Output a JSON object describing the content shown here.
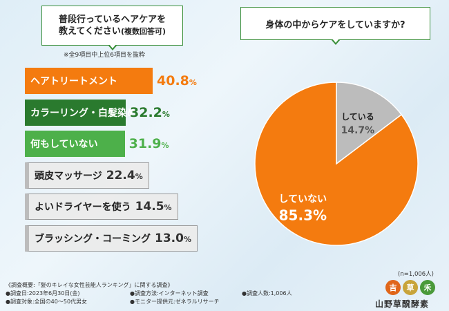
{
  "question1": {
    "line1": "普段行っているヘアケアを",
    "line2": "教えてください",
    "line2b": "(複数回答可)"
  },
  "note": "※全9項目中上位6項目を抜粋",
  "question2": "身体の中からケアをしていますか?",
  "colors": {
    "orange": "#f47b0f",
    "dark_green": "#2a7a2e",
    "light_green": "#4db04a",
    "gray": "#bcbcbc"
  },
  "chart_data": [
    {
      "type": "bar",
      "orientation": "horizontal",
      "title": "普段行っているヘアケアを教えてください(複数回答可)",
      "unit": "%",
      "categories": [
        "ヘアトリートメント",
        "カラーリング・白髪染め",
        "何もしていない",
        "頭皮マッサージ",
        "よいドライヤーを使う",
        "ブラッシング・コーミング"
      ],
      "values": [
        40.8,
        32.2,
        31.9,
        22.4,
        14.5,
        13.0
      ],
      "labels": [
        "40.8%",
        "32.2%",
        "31.9%",
        "22.4%",
        "14.5%",
        "13.0%"
      ]
    },
    {
      "type": "pie",
      "title": "身体の中からケアをしていますか?",
      "categories": [
        "している",
        "していない"
      ],
      "values": [
        14.7,
        85.3
      ],
      "labels": [
        "14.7%",
        "85.3%"
      ]
    }
  ],
  "sample_size": "(n=1,006人)",
  "footer": {
    "survey": "《調査概要:「髪のキレイな女性芸能人ランキング」に関する調査》",
    "date": "●調査日:2023年6月30日(金)",
    "target": "●調査対象:全国の40〜50代男女",
    "method": "●調査方法:インターネット調査",
    "monitor": "●モニター提供元:ゼネラルリサーチ",
    "count": "●調査人数:1,006人"
  },
  "logo": {
    "mark1": "吉",
    "mark2": "草",
    "mark3": "禾",
    "text": "山野草醗酵素"
  }
}
